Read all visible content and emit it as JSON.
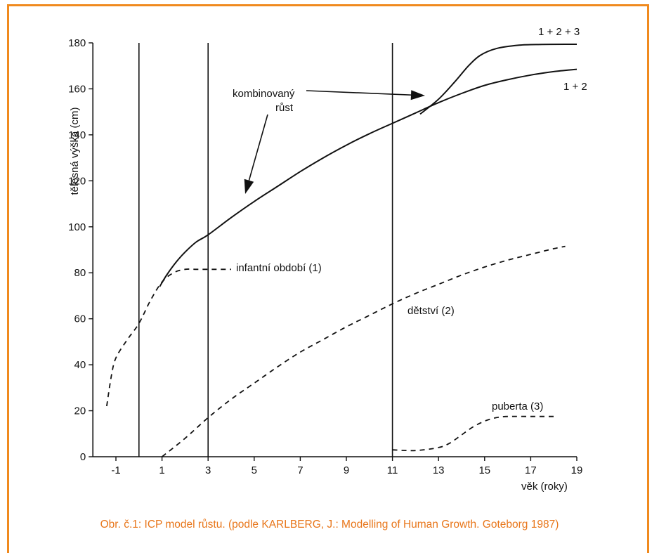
{
  "chart_data": {
    "type": "line",
    "ylabel": "tělesná výška (cm)",
    "xlabel": "věk (roky)",
    "xlim": [
      -2,
      19
    ],
    "ylim": [
      0,
      180
    ],
    "x_ticks": [
      "-1",
      "1",
      "3",
      "5",
      "7",
      "9",
      "11",
      "13",
      "15",
      "17",
      "19"
    ],
    "x_tick_values": [
      -1,
      1,
      3,
      5,
      7,
      9,
      11,
      13,
      15,
      17,
      19
    ],
    "y_ticks": [
      "0",
      "20",
      "40",
      "60",
      "80",
      "100",
      "120",
      "140",
      "160",
      "180"
    ],
    "y_tick_values": [
      0,
      20,
      40,
      60,
      80,
      100,
      120,
      140,
      160,
      180
    ],
    "vertical_lines": [
      0,
      3,
      11
    ],
    "series": [
      {
        "label": "1 + 2 + 3",
        "style": "solid",
        "x": [
          12.2,
          13,
          13.7,
          14.3,
          14.8,
          15.5,
          16.5,
          17.5,
          18.5,
          19
        ],
        "y": [
          149,
          155.5,
          163,
          170,
          174.5,
          177.5,
          179,
          179.3,
          179.4,
          179.4
        ]
      },
      {
        "label": "1 + 2",
        "style": "solid",
        "x": [
          0.9,
          1.2,
          1.6,
          2,
          2.5,
          3,
          4,
          5,
          6,
          7,
          8,
          9,
          10,
          11,
          12,
          13,
          14,
          15,
          16,
          17,
          18,
          19
        ],
        "y": [
          74,
          79,
          84.5,
          89,
          93.5,
          96.5,
          104,
          111,
          117.5,
          124,
          130,
          135.5,
          140.5,
          145,
          149.5,
          154,
          158,
          161.5,
          164,
          166,
          167.5,
          168.5
        ]
      },
      {
        "label": "infantní období (1)",
        "style": "dashed",
        "x": [
          -1.4,
          -1.2,
          -1,
          -0.5,
          0,
          0.5,
          1,
          1.5,
          2,
          2.5,
          3,
          3.5,
          4
        ],
        "y": [
          22,
          35,
          43,
          51,
          58,
          68,
          76,
          80,
          81.5,
          81.5,
          81.5,
          81.5,
          81.5
        ]
      },
      {
        "label": "dětství (2)",
        "style": "dashed",
        "x": [
          1,
          2,
          3,
          4,
          5,
          6,
          7,
          8,
          9,
          10,
          11,
          12,
          13,
          14,
          15,
          16,
          17,
          18,
          18.5
        ],
        "y": [
          0,
          8,
          17,
          25,
          32,
          39,
          45.5,
          51,
          56.5,
          61.5,
          66.5,
          71,
          75,
          79,
          82.5,
          85.5,
          88,
          90.5,
          91.5
        ]
      },
      {
        "label": "puberta (3)",
        "style": "dashed",
        "x": [
          11,
          12,
          13,
          13.5,
          14,
          14.5,
          15,
          15.5,
          16,
          17,
          18
        ],
        "y": [
          3,
          2.7,
          4,
          6,
          9.5,
          13,
          15.5,
          17,
          17.5,
          17.5,
          17.5
        ]
      }
    ],
    "annotations": {
      "combined_line1": "kombinovaný",
      "combined_line2": "růst",
      "infant": "infantní období (1)",
      "childhood": "dětství (2)",
      "puberty": "puberta (3)",
      "sum_all": "1 + 2 + 3",
      "sum_two": "1 + 2"
    },
    "caption": "Obr. č.1: ICP model růstu. (podle KARLBERG, J.: Modelling of Human Growth. Goteborg 1987)",
    "grid": false,
    "legend": "none"
  },
  "colors": {
    "frame": "#f08a1e",
    "caption": "#e8761a",
    "lines": "#111111"
  }
}
